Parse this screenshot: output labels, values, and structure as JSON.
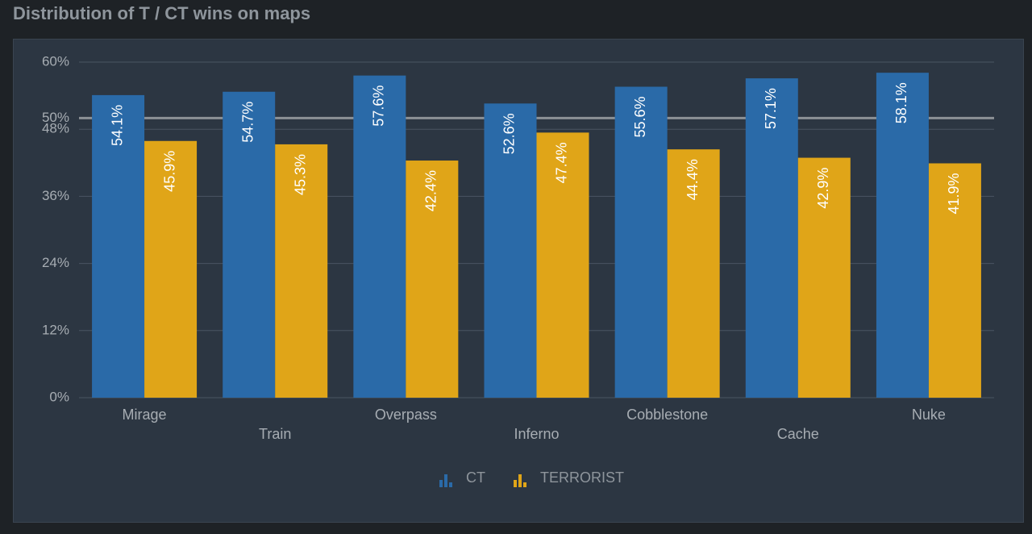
{
  "chart_data": {
    "type": "bar",
    "title": "Distribution of T / CT wins on maps",
    "categories": [
      "Mirage",
      "Train",
      "Overpass",
      "Inferno",
      "Cobblestone",
      "Cache",
      "Nuke"
    ],
    "series": [
      {
        "name": "CT",
        "color": "#2a6aa8",
        "values": [
          54.1,
          54.7,
          57.6,
          52.6,
          55.6,
          57.1,
          58.1
        ],
        "value_labels": [
          "54.1%",
          "54.7%",
          "57.6%",
          "52.6%",
          "55.6%",
          "57.1%",
          "58.1%"
        ]
      },
      {
        "name": "TERRORIST",
        "color": "#e0a518",
        "values": [
          45.9,
          45.3,
          42.4,
          47.4,
          44.4,
          42.9,
          41.9
        ],
        "value_labels": [
          "45.9%",
          "45.3%",
          "42.4%",
          "47.4%",
          "44.4%",
          "42.9%",
          "41.9%"
        ]
      }
    ],
    "ylim": [
      0,
      60
    ],
    "yticks": [
      {
        "value": 0,
        "label": "0%"
      },
      {
        "value": 12,
        "label": "12%"
      },
      {
        "value": 24,
        "label": "24%"
      },
      {
        "value": 36,
        "label": "36%"
      },
      {
        "value": 48,
        "label": "48%"
      },
      {
        "value": 60,
        "label": "60%"
      }
    ],
    "reference_line": {
      "value": 50,
      "label": "50%"
    },
    "grid": true
  }
}
